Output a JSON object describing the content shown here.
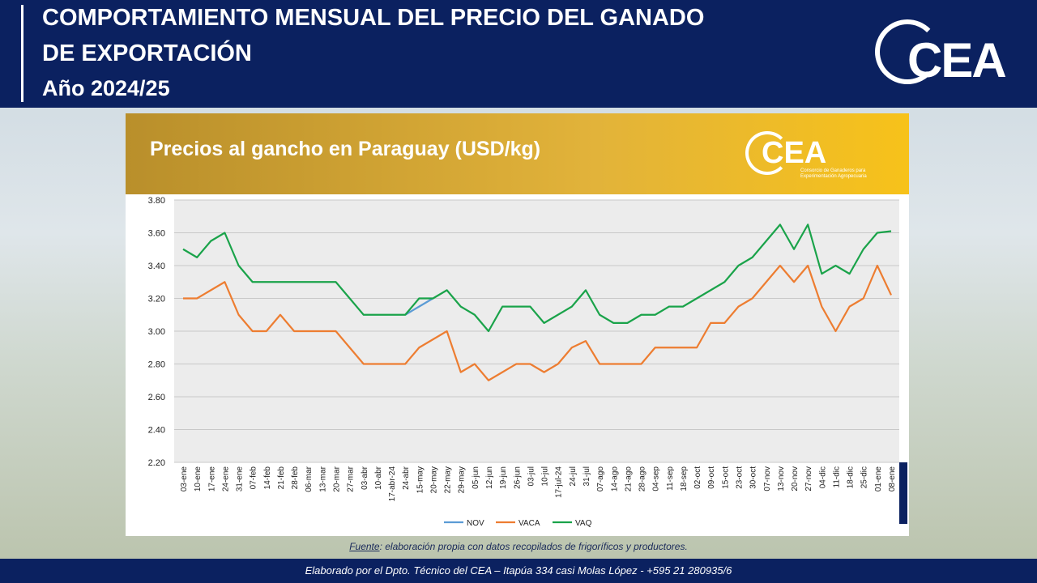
{
  "header": {
    "title_line1": "COMPORTAMIENTO MENSUAL DEL PRECIO DEL GANADO",
    "title_line2": "DE EXPORTACIÓN",
    "subtitle": "Año 2024/25",
    "logo": "CEA"
  },
  "banner_logo": {
    "text": "CEA",
    "tagline": "Consorcio de Ganaderos para Experimentación Agropecuaria"
  },
  "chart_data": {
    "type": "line",
    "title": "Precios al gancho en Paraguay (USD/kg)",
    "categories": [
      "03-ene",
      "10-ene",
      "17-ene",
      "24-ene",
      "31-ene",
      "07-feb",
      "14-feb",
      "21-feb",
      "28-feb",
      "06-mar",
      "13-mar",
      "20-mar",
      "27-mar",
      "03-abr",
      "10-abr",
      "17-abr-24",
      "24-abr",
      "15-may",
      "20-may",
      "22-may",
      "29-may",
      "05-jun",
      "12-jun",
      "19-jun",
      "26-jun",
      "03-jul",
      "10-jul",
      "17-jul-24",
      "24-jul",
      "31-jul",
      "07-ago",
      "14-ago",
      "21-ago",
      "28-ago",
      "04-sep",
      "11-sep",
      "18-sep",
      "02-oct",
      "09-oct",
      "15-oct",
      "23-oct",
      "30-oct",
      "07-nov",
      "13-nov",
      "20-nov",
      "27-nov",
      "04-dic",
      "11-dic",
      "18-dic",
      "25-dic",
      "01-ene",
      "08-ene"
    ],
    "series": [
      {
        "name": "NOV",
        "color": "#5b9bd5",
        "values": [
          null,
          null,
          null,
          null,
          null,
          null,
          null,
          null,
          null,
          null,
          null,
          null,
          null,
          null,
          null,
          null,
          3.1,
          3.15,
          3.2,
          null,
          null,
          null,
          null,
          null,
          null,
          null,
          null,
          null,
          null,
          null,
          null,
          null,
          null,
          null,
          null,
          null,
          null,
          null,
          null,
          null,
          null,
          null,
          null,
          null,
          null,
          null,
          null,
          null,
          null,
          null,
          null,
          null
        ]
      },
      {
        "name": "VACA",
        "color": "#ed7d31",
        "values": [
          3.2,
          3.2,
          3.25,
          3.3,
          3.1,
          3.0,
          3.0,
          3.1,
          3.0,
          3.0,
          3.0,
          3.0,
          2.9,
          2.8,
          2.8,
          2.8,
          2.8,
          2.9,
          2.95,
          3.0,
          2.75,
          2.8,
          2.7,
          2.75,
          2.8,
          2.8,
          2.75,
          2.8,
          2.9,
          2.94,
          2.8,
          2.8,
          2.8,
          2.8,
          2.9,
          2.9,
          2.9,
          2.9,
          3.05,
          3.05,
          3.15,
          3.2,
          3.3,
          3.4,
          3.3,
          3.4,
          3.15,
          3.0,
          3.15,
          3.2,
          3.4,
          3.22
        ]
      },
      {
        "name": "VAQ",
        "color": "#1aa34a",
        "values": [
          3.5,
          3.45,
          3.55,
          3.6,
          3.4,
          3.3,
          3.3,
          3.3,
          3.3,
          3.3,
          3.3,
          3.3,
          3.2,
          3.1,
          3.1,
          3.1,
          3.1,
          3.2,
          3.2,
          3.25,
          3.15,
          3.1,
          3.0,
          3.15,
          3.15,
          3.15,
          3.05,
          3.1,
          3.15,
          3.25,
          3.1,
          3.05,
          3.05,
          3.1,
          3.1,
          3.15,
          3.15,
          3.2,
          3.25,
          3.3,
          3.4,
          3.45,
          3.55,
          3.65,
          3.5,
          3.65,
          3.35,
          3.4,
          3.35,
          3.5,
          3.6,
          3.61
        ]
      }
    ],
    "ylim": [
      2.2,
      3.8
    ],
    "yticks": [
      {
        "value": 2.2,
        "label": "2.20"
      },
      {
        "value": 2.4,
        "label": "2.40"
      },
      {
        "value": 2.6,
        "label": "2.60"
      },
      {
        "value": 2.8,
        "label": "2.80"
      },
      {
        "value": 3,
        "label": "3.00"
      },
      {
        "value": 3.2,
        "label": "3.20"
      },
      {
        "value": 3.4,
        "label": "3.40"
      },
      {
        "value": 3.6,
        "label": "3.60"
      },
      {
        "value": 3.8,
        "label": "3.80"
      }
    ],
    "grid": true,
    "legend": "bottom"
  },
  "source": {
    "label": "Fuente",
    "text": ": elaboración propia con datos recopilados de frigoríficos y productores."
  },
  "footer": "Elaborado por el Dpto. Técnico del CEA – Itapúa 334 casi Molas López - +595 21 280935/6"
}
